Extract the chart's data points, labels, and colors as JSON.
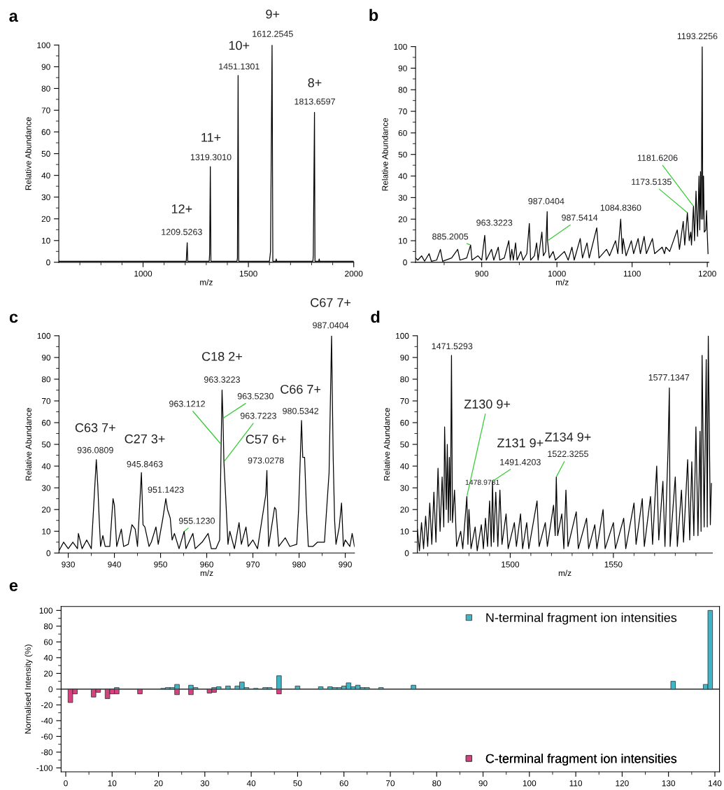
{
  "chart_data": [
    {
      "type": "line",
      "title": "a",
      "xlabel": "m/z",
      "ylabel": "Relative Abundance",
      "xlim": [
        600,
        2000
      ],
      "ylim": [
        0,
        100
      ],
      "xticks": [
        {
          "value": 700,
          "label": null
        },
        {
          "value": 800,
          "label": null
        },
        {
          "value": 900,
          "label": null
        },
        1000,
        {
          "value": 1100,
          "label": null
        },
        {
          "value": 1200,
          "label": null
        },
        {
          "value": 1300,
          "label": null
        },
        {
          "value": 1400,
          "label": null
        },
        1500,
        {
          "value": 1600,
          "label": null
        },
        {
          "value": 1700,
          "label": null
        },
        {
          "value": 1800,
          "label": null
        },
        {
          "value": 1900,
          "label": null
        },
        2000
      ],
      "yticks": [
        0,
        {
          "value": 5,
          "label": null
        },
        10,
        {
          "value": 15,
          "label": null
        },
        20,
        {
          "value": 25,
          "label": null
        },
        30,
        {
          "value": 35,
          "label": null
        },
        40,
        {
          "value": 45,
          "label": null
        },
        50,
        {
          "value": 55,
          "label": null
        },
        60,
        {
          "value": 65,
          "label": null
        },
        70,
        {
          "value": 75,
          "label": null
        },
        80,
        {
          "value": 85,
          "label": null
        },
        90,
        {
          "value": 95,
          "label": null
        },
        100
      ],
      "series": [
        {
          "color": "#000000",
          "x": [
            600,
            1205,
            1209.5,
            1212,
            1314,
            1316,
            1319.3,
            1322,
            1446,
            1448,
            1451.1,
            1454,
            1600,
            1605,
            1612.3,
            1616,
            1630,
            1632,
            1634,
            1806,
            1808,
            1813.7,
            1816,
            1834,
            1836,
            1838,
            2000
          ],
          "values": [
            0.5,
            0.5,
            9,
            0.5,
            0.5,
            4,
            44,
            0.5,
            0.5,
            2,
            86,
            0.5,
            0.5,
            5,
            100,
            0.5,
            0.5,
            1.5,
            0.5,
            0.5,
            3,
            69,
            0.5,
            0.5,
            1.5,
            0.5,
            0.5
          ]
        }
      ],
      "annotations": [
        {
          "text": "12+",
          "x": 1209.5,
          "y": 9
        },
        {
          "text": "1209.5263",
          "x": 1209.5,
          "y": 9
        },
        {
          "text": "11+",
          "x": 1319.3,
          "y": 44
        },
        {
          "text": "1319.3010",
          "x": 1319.3,
          "y": 44
        },
        {
          "text": "10+",
          "x": 1451.1,
          "y": 86
        },
        {
          "text": "1451.1301",
          "x": 1451.1,
          "y": 86
        },
        {
          "text": "9+",
          "x": 1612.3,
          "y": 100
        },
        {
          "text": "1612.2545",
          "x": 1612.3,
          "y": 100
        },
        {
          "text": "8+",
          "x": 1813.7,
          "y": 69
        },
        {
          "text": "1813.6597",
          "x": 1813.7,
          "y": 69
        }
      ]
    },
    {
      "type": "line",
      "title": "b",
      "xlabel": "m/z",
      "ylabel": "Relative Abundance",
      "xlim": [
        812,
        1202
      ],
      "ylim": [
        0,
        100
      ],
      "xticks": [
        {
          "value": 850,
          "label": null
        },
        900,
        {
          "value": 950,
          "label": null
        },
        1000,
        {
          "value": 1050,
          "label": null
        },
        1100,
        {
          "value": 1150,
          "label": null
        },
        1200
      ],
      "yticks": [
        0,
        {
          "value": 5,
          "label": null
        },
        10,
        {
          "value": 15,
          "label": null
        },
        20,
        {
          "value": 25,
          "label": null
        },
        30,
        {
          "value": 35,
          "label": null
        },
        40,
        {
          "value": 45,
          "label": null
        },
        50,
        {
          "value": 55,
          "label": null
        },
        60,
        {
          "value": 65,
          "label": null
        },
        70,
        {
          "value": 75,
          "label": null
        },
        80,
        {
          "value": 85,
          "label": null
        },
        90,
        {
          "value": 95,
          "label": null
        },
        100
      ],
      "series": [
        {
          "color": "#000000",
          "x": [
            812,
            815,
            820,
            824,
            830,
            833,
            840,
            845,
            848,
            860,
            868,
            871,
            880,
            885.2,
            887,
            895,
            900,
            904,
            906,
            913,
            916,
            922,
            924,
            930,
            936,
            938,
            940,
            942,
            945,
            947,
            952,
            955,
            960,
            963.3,
            965,
            970,
            973,
            975,
            980,
            982,
            985,
            987.04,
            987.54,
            990,
            995,
            998,
            1010,
            1015,
            1020,
            1023,
            1031,
            1034,
            1040,
            1043,
            1053,
            1056,
            1066,
            1070,
            1078,
            1081,
            1084.84,
            1087,
            1088,
            1092,
            1099,
            1102,
            1108,
            1111,
            1116,
            1119,
            1127,
            1130,
            1140,
            1143,
            1145,
            1150,
            1160,
            1163,
            1168,
            1170,
            1173.51,
            1176,
            1178,
            1179,
            1181.62,
            1183,
            1185,
            1187,
            1189,
            1190,
            1191,
            1192,
            1193.23,
            1194,
            1195,
            1196,
            1198,
            1199,
            1200,
            1201
          ],
          "values": [
            2,
            1,
            3,
            0.5,
            4,
            0.5,
            1,
            6,
            0.5,
            2,
            6,
            1,
            2,
            8,
            1,
            3,
            1,
            12.5,
            1,
            6,
            1,
            7,
            1,
            2,
            10,
            1,
            6,
            1,
            9,
            1,
            5,
            1,
            4,
            18,
            1,
            3,
            9,
            1,
            14,
            3,
            5,
            23.5,
            10,
            2,
            5,
            1,
            5,
            1,
            7,
            1,
            11,
            2,
            9,
            2,
            16,
            2,
            6,
            3,
            10,
            4,
            20,
            4,
            11,
            3,
            10,
            4,
            11,
            4,
            12,
            4,
            11,
            4,
            7,
            4,
            7,
            5,
            15,
            6,
            19,
            8,
            23,
            10,
            14,
            8,
            26,
            10,
            33,
            12,
            40,
            15,
            42,
            20,
            100,
            20,
            40,
            14,
            15,
            24,
            13,
            4
          ]
        }
      ],
      "annotations": [
        {
          "text": "885.2005",
          "x": 885.2,
          "y": 8
        },
        {
          "text": "963.3223",
          "x": 963.3,
          "y": 18
        },
        {
          "text": "987.0404",
          "x": 987.04,
          "y": 23.5
        },
        {
          "text": "987.5414",
          "x": 987.54,
          "y": 10
        },
        {
          "text": "1084.8360",
          "x": 1084.84,
          "y": 20
        },
        {
          "text": "1173.5135",
          "x": 1173.51,
          "y": 23
        },
        {
          "text": "1181.6206",
          "x": 1181.62,
          "y": 26
        },
        {
          "text": "1193.2256",
          "x": 1193.23,
          "y": 100
        }
      ]
    },
    {
      "type": "line",
      "title": "c",
      "xlabel": "m/z",
      "ylabel": "Relative Abundance",
      "xlim": [
        928,
        992
      ],
      "ylim": [
        0,
        100
      ],
      "xticks": [
        930,
        {
          "value": 935,
          "label": null
        },
        940,
        {
          "value": 945,
          "label": null
        },
        950,
        {
          "value": 955,
          "label": null
        },
        960,
        {
          "value": 965,
          "label": null
        },
        970,
        {
          "value": 975,
          "label": null
        },
        980,
        {
          "value": 985,
          "label": null
        },
        990
      ],
      "yticks": [
        0,
        {
          "value": 5,
          "label": null
        },
        10,
        {
          "value": 15,
          "label": null
        },
        20,
        {
          "value": 25,
          "label": null
        },
        30,
        {
          "value": 35,
          "label": null
        },
        40,
        {
          "value": 45,
          "label": null
        },
        50,
        {
          "value": 55,
          "label": null
        },
        60,
        {
          "value": 65,
          "label": null
        },
        70,
        {
          "value": 75,
          "label": null
        },
        80,
        {
          "value": 85,
          "label": null
        },
        90,
        {
          "value": 95,
          "label": null
        },
        100
      ],
      "series": [
        {
          "color": "#000000",
          "x": [
            928,
            929,
            930,
            931,
            932,
            932.2,
            933,
            934,
            935,
            936.08,
            936.4,
            936.7,
            937,
            937.5,
            938,
            939,
            939.7,
            940,
            940.5,
            941.5,
            942,
            943,
            943.8,
            944.5,
            945,
            945.85,
            946.2,
            946.6,
            947.5,
            948,
            949,
            949.5,
            950.5,
            951.14,
            951.5,
            952.1,
            952.5,
            953,
            954,
            955.12,
            955.5,
            957,
            957.5,
            959,
            960.3,
            961,
            962,
            962.8,
            963.12,
            963.32,
            963.52,
            963.72,
            964.1,
            964.6,
            965,
            966,
            967,
            967.5,
            968.5,
            969,
            970,
            971,
            972.8,
            973.03,
            973.4,
            974.7,
            975,
            975.6,
            977,
            978,
            979.5,
            979.9,
            980.53,
            980.8,
            981.2,
            981.6,
            982,
            983,
            984,
            985.5,
            986.5,
            987.04,
            987.2,
            987.4,
            987.7,
            988,
            988.7,
            989.2,
            989.6,
            990,
            991,
            991.5,
            992
          ],
          "values": [
            1,
            5,
            2,
            5,
            2,
            9,
            2,
            6,
            2,
            43,
            31,
            16,
            3,
            8,
            3,
            3,
            25,
            22,
            3,
            11,
            3,
            4,
            13,
            11,
            3,
            37,
            13,
            12,
            3,
            5,
            12,
            4,
            16,
            25,
            20,
            16,
            6,
            9,
            2,
            10,
            2,
            9,
            2,
            5,
            9,
            2,
            2,
            6,
            50,
            75,
            62,
            42,
            26,
            4,
            10,
            2,
            14,
            4,
            12,
            3,
            6,
            2,
            27,
            38,
            3,
            21,
            20,
            3,
            7,
            3,
            4,
            20,
            61,
            44,
            44,
            20,
            3,
            3,
            5,
            5,
            37,
            100,
            73,
            43,
            15,
            4,
            12,
            23,
            3,
            6,
            3,
            9,
            3
          ]
        }
      ],
      "annotations": [
        {
          "text": "C63 7+",
          "x": 936.08,
          "y": 43
        },
        {
          "text": "936.0809",
          "x": 936.08,
          "y": 43
        },
        {
          "text": "C27 3+",
          "x": 945.85,
          "y": 37
        },
        {
          "text": "945.8463",
          "x": 945.85,
          "y": 37
        },
        {
          "text": "951.1423",
          "x": 951.14,
          "y": 25
        },
        {
          "text": "955.1230",
          "x": 955.12,
          "y": 10
        },
        {
          "text": "C18 2+",
          "x": 963.32,
          "y": 75
        },
        {
          "text": "963.3223",
          "x": 963.32,
          "y": 75
        },
        {
          "text": "963.1212",
          "x": 963.12,
          "y": 50
        },
        {
          "text": "963.5230",
          "x": 963.52,
          "y": 62
        },
        {
          "text": "963.7223",
          "x": 963.72,
          "y": 42
        },
        {
          "text": "C57 6+",
          "x": 973.03,
          "y": 38
        },
        {
          "text": "973.0278",
          "x": 973.03,
          "y": 38
        },
        {
          "text": "C66 7+",
          "x": 980.53,
          "y": 61
        },
        {
          "text": "980.5342",
          "x": 980.53,
          "y": 61
        },
        {
          "text": "C67 7+",
          "x": 987.04,
          "y": 100
        },
        {
          "text": "987.0404",
          "x": 987.04,
          "y": 100
        }
      ]
    },
    {
      "type": "line",
      "title": "d",
      "xlabel": "m/z",
      "ylabel": "Relative Abundance",
      "xlim": [
        1455,
        1598
      ],
      "ylim": [
        0,
        100
      ],
      "xticks": [
        {
          "value": 1460,
          "label": null
        },
        {
          "value": 1470,
          "label": null
        },
        {
          "value": 1480,
          "label": null
        },
        {
          "value": 1490,
          "label": null
        },
        1500,
        {
          "value": 1510,
          "label": null
        },
        {
          "value": 1520,
          "label": null
        },
        {
          "value": 1530,
          "label": null
        },
        {
          "value": 1540,
          "label": null
        },
        1550,
        {
          "value": 1560,
          "label": null
        },
        {
          "value": 1570,
          "label": null
        },
        {
          "value": 1580,
          "label": null
        },
        {
          "value": 1590,
          "label": null
        }
      ],
      "yticks": [
        0,
        {
          "value": 5,
          "label": null
        },
        10,
        {
          "value": 15,
          "label": null
        },
        20,
        {
          "value": 25,
          "label": null
        },
        30,
        {
          "value": 35,
          "label": null
        },
        40,
        {
          "value": 45,
          "label": null
        },
        50,
        {
          "value": 55,
          "label": null
        },
        60,
        {
          "value": 65,
          "label": null
        },
        70,
        {
          "value": 75,
          "label": null
        },
        80,
        {
          "value": 85,
          "label": null
        },
        90,
        {
          "value": 95,
          "label": null
        },
        100
      ],
      "series": [
        {
          "color": "#000000",
          "x": [
            1455,
            1456,
            1457,
            1458,
            1459,
            1460,
            1461,
            1462,
            1463,
            1464,
            1465,
            1466,
            1467,
            1467.8,
            1468.2,
            1469,
            1469.5,
            1470,
            1470.5,
            1471,
            1471.53,
            1472,
            1473,
            1474,
            1476,
            1477,
            1478.98,
            1479.5,
            1480,
            1481,
            1483,
            1484,
            1486,
            1487,
            1488,
            1489,
            1490,
            1490.8,
            1491.42,
            1492,
            1493,
            1494,
            1495,
            1496,
            1498,
            1499,
            1502,
            1503,
            1505,
            1506,
            1508,
            1509,
            1513,
            1514,
            1517,
            1518,
            1521,
            1521.8,
            1522.33,
            1523,
            1525,
            1526,
            1527,
            1528,
            1532,
            1533,
            1537,
            1538,
            1541,
            1542,
            1545,
            1546,
            1550,
            1551,
            1555,
            1556,
            1560,
            1561,
            1564,
            1565,
            1568,
            1569,
            1571,
            1572,
            1574,
            1575,
            1576.5,
            1577.13,
            1577.5,
            1580,
            1581,
            1583,
            1584,
            1586,
            1587,
            1588,
            1589,
            1590,
            1591,
            1592,
            1592.5,
            1593,
            1594,
            1595,
            1595.5,
            1596,
            1597,
            1597.5
          ],
          "values": [
            11,
            1,
            14,
            2,
            17,
            3,
            23,
            4,
            28,
            5,
            39,
            10,
            35,
            12,
            58,
            20,
            50,
            14,
            44,
            15,
            91,
            14,
            29,
            3,
            10,
            2,
            26,
            4,
            20,
            2,
            12,
            1,
            13,
            2,
            16,
            3,
            24,
            3,
            33,
            5,
            28,
            3,
            29,
            4,
            18,
            2,
            14,
            3,
            18,
            2,
            14,
            2,
            24,
            3,
            14,
            3,
            22,
            8,
            35,
            8,
            18,
            2,
            29,
            3,
            19,
            2,
            16,
            2,
            13,
            2,
            20,
            2,
            14,
            2,
            16,
            2,
            23,
            4,
            25,
            3,
            26,
            4,
            40,
            6,
            33,
            3,
            48,
            76,
            3,
            35,
            3,
            29,
            5,
            43,
            6,
            42,
            8,
            58,
            8,
            56,
            10,
            91,
            12,
            89,
            12,
            100,
            13,
            32
          ]
        }
      ],
      "annotations": [
        {
          "text": "1471.5293",
          "x": 1471.53,
          "y": 91
        },
        {
          "text": "Z130 9+",
          "x": 1478.98,
          "y": 26
        },
        {
          "text": "1478.9781",
          "x": 1478.98,
          "y": 26
        },
        {
          "text": "Z131 9+",
          "x": 1491.42,
          "y": 33
        },
        {
          "text": "1491.4203",
          "x": 1491.42,
          "y": 33
        },
        {
          "text": "Z134 9+",
          "x": 1522.33,
          "y": 35
        },
        {
          "text": "1522.3255",
          "x": 1522.33,
          "y": 35
        },
        {
          "text": "1577.1347",
          "x": 1577.13,
          "y": 76
        }
      ]
    },
    {
      "type": "bar",
      "title": "e",
      "ylabel": "Normalised Intensity (%)",
      "xlim": [
        -1,
        141
      ],
      "ylim": [
        -105,
        105
      ],
      "legend": "right",
      "xticks": [
        0,
        {
          "value": 5,
          "label": null
        },
        10,
        {
          "value": 15,
          "label": null
        },
        20,
        {
          "value": 25,
          "label": null
        },
        30,
        {
          "value": 35,
          "label": null
        },
        40,
        {
          "value": 45,
          "label": null
        },
        50,
        {
          "value": 55,
          "label": null
        },
        60,
        {
          "value": 65,
          "label": null
        },
        70,
        {
          "value": 75,
          "label": null
        },
        80,
        {
          "value": 85,
          "label": null
        },
        90,
        {
          "value": 95,
          "label": null
        },
        100,
        {
          "value": 105,
          "label": null
        },
        110,
        {
          "value": 115,
          "label": null
        },
        120,
        {
          "value": 125,
          "label": null
        },
        130,
        {
          "value": 135,
          "label": null
        },
        140
      ],
      "yticks": [
        {
          "value": -100,
          "label": "-100"
        },
        {
          "value": -90,
          "label": null
        },
        {
          "value": -80,
          "label": "-80"
        },
        {
          "value": -70,
          "label": null
        },
        {
          "value": -60,
          "label": "-60"
        },
        {
          "value": -50,
          "label": null
        },
        {
          "value": -40,
          "label": "-40"
        },
        {
          "value": -30,
          "label": null
        },
        {
          "value": -20,
          "label": "-20"
        },
        {
          "value": -10,
          "label": null
        },
        0,
        {
          "value": 10,
          "label": null
        },
        20,
        {
          "value": 30,
          "label": null
        },
        40,
        {
          "value": 50,
          "label": null
        },
        60,
        {
          "value": 70,
          "label": null
        },
        80,
        {
          "value": 90,
          "label": null
        },
        100
      ],
      "series": [
        {
          "name": "N-terminal fragment ion intensities",
          "color": "#3fb6c8",
          "x": [
            11,
            21,
            22,
            23,
            24,
            27,
            28,
            32,
            33,
            35,
            37,
            38,
            39,
            41,
            43,
            44,
            46,
            50,
            55,
            57,
            58,
            59,
            60,
            61,
            62,
            63,
            64,
            65,
            68,
            75,
            131,
            138,
            139
          ],
          "values": [
            2,
            1,
            2,
            2,
            6,
            5,
            2,
            2,
            3,
            4,
            4,
            9,
            2,
            1,
            2,
            2,
            17,
            4,
            3,
            3,
            2,
            2,
            4,
            8,
            3,
            5,
            2,
            2,
            2,
            5,
            10,
            6,
            100
          ]
        },
        {
          "name": "C-terminal fragment ion intensities",
          "color": "#d6427f",
          "x": [
            1,
            2,
            6,
            7,
            9,
            10,
            11,
            16,
            24,
            27,
            31,
            32,
            46
          ],
          "values": [
            -17,
            -6,
            -10,
            -4,
            -12,
            -6,
            -6,
            -6,
            -7,
            -7,
            -5,
            -4,
            -6
          ]
        }
      ]
    }
  ]
}
